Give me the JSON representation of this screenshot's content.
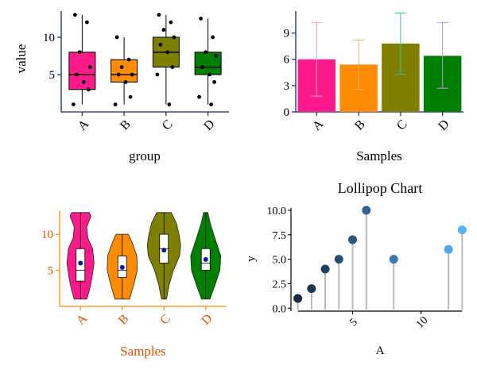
{
  "chart_data": [
    {
      "type": "box",
      "panel": "top-left",
      "xlabel": "group",
      "ylabel": "value",
      "categories": [
        "A",
        "B",
        "C",
        "D"
      ],
      "ylim": [
        0,
        13.5
      ],
      "yticks": [
        5,
        10
      ],
      "colors": [
        "#ff1a8c",
        "#ff8c00",
        "#808000",
        "#008000"
      ],
      "axis_color": "#1a237e",
      "boxes": [
        {
          "min": 1,
          "q1": 3,
          "median": 5,
          "q3": 8,
          "max": 13
        },
        {
          "min": 1,
          "q1": 4,
          "median": 5,
          "q3": 7,
          "max": 10
        },
        {
          "min": 1,
          "q1": 6,
          "median": 8,
          "q3": 10,
          "max": 13
        },
        {
          "min": 1,
          "q1": 5,
          "median": 6,
          "q3": 8,
          "max": 12.5
        }
      ],
      "points": [
        [
          13,
          12,
          8,
          6,
          5,
          4,
          3,
          1
        ],
        [
          10,
          7,
          6,
          5,
          5,
          4,
          2,
          1
        ],
        [
          13,
          12,
          11,
          10,
          9,
          8,
          6,
          5,
          1
        ],
        [
          12.5,
          10,
          8,
          7.5,
          6,
          5,
          4,
          2,
          1
        ]
      ]
    },
    {
      "type": "bar",
      "panel": "top-right",
      "xlabel": "Samples",
      "ylabel": "",
      "categories": [
        "A",
        "B",
        "C",
        "D"
      ],
      "values": [
        6,
        5.4,
        7.8,
        6.4
      ],
      "error_low": [
        1.8,
        2.6,
        4.3,
        2.7
      ],
      "error_high": [
        10.2,
        8.2,
        11.3,
        10.2
      ],
      "ylim": [
        0,
        11.5
      ],
      "yticks": [
        0,
        3,
        6,
        9
      ],
      "colors": [
        "#ff1a8c",
        "#ff8c00",
        "#808000",
        "#008000"
      ],
      "error_colors": [
        "#f4a0c0",
        "#e8b070",
        "#30c0b0",
        "#c090e0"
      ],
      "axis_color": "#1a237e"
    },
    {
      "type": "violin",
      "panel": "bottom-left",
      "xlabel": "Samples",
      "ylabel": "",
      "categories": [
        "A",
        "B",
        "C",
        "D"
      ],
      "ylim": [
        0,
        13.2
      ],
      "yticks": [
        5,
        10
      ],
      "colors": [
        "#ff1a8c",
        "#ff8c00",
        "#808000",
        "#008000"
      ],
      "axis_color": "#ff8c00",
      "label_color": "#e65100",
      "min": [
        1,
        1,
        1,
        1
      ],
      "max": [
        13,
        10,
        13,
        13
      ],
      "q1": [
        3.5,
        4,
        6,
        5
      ],
      "median": [
        5,
        5,
        8,
        6
      ],
      "q3": [
        8,
        7,
        10,
        8
      ],
      "mean": [
        6,
        5.4,
        7.8,
        6.5
      ],
      "width_profile": [
        [
          [
            1,
            0.3
          ],
          [
            2.5,
            0.45
          ],
          [
            4,
            0.55
          ],
          [
            6,
            0.65
          ],
          [
            8,
            0.58
          ],
          [
            9.5,
            0.35
          ],
          [
            11,
            0.3
          ],
          [
            12.5,
            0.5
          ],
          [
            13,
            0.42
          ]
        ],
        [
          [
            1,
            0.35
          ],
          [
            3,
            0.55
          ],
          [
            5,
            0.72
          ],
          [
            7,
            0.7
          ],
          [
            9,
            0.45
          ],
          [
            10,
            0.3
          ]
        ],
        [
          [
            1,
            0.12
          ],
          [
            3,
            0.25
          ],
          [
            5,
            0.45
          ],
          [
            7,
            0.75
          ],
          [
            8.5,
            0.8
          ],
          [
            10,
            0.72
          ],
          [
            11.5,
            0.6
          ],
          [
            13,
            0.35
          ]
        ],
        [
          [
            1,
            0.2
          ],
          [
            3,
            0.45
          ],
          [
            5,
            0.68
          ],
          [
            7,
            0.72
          ],
          [
            8.5,
            0.55
          ],
          [
            10,
            0.38
          ],
          [
            11.5,
            0.22
          ],
          [
            13,
            0.1
          ]
        ]
      ]
    },
    {
      "type": "lollipop",
      "panel": "bottom-right",
      "title": "Lollipop Chart",
      "xlabel": "A",
      "ylabel": "y",
      "x": [
        1,
        2,
        3,
        4,
        5,
        6,
        8,
        12,
        13
      ],
      "y": [
        1,
        2,
        4,
        5,
        7,
        10,
        5,
        6,
        8
      ],
      "xlim": [
        0.5,
        13.5
      ],
      "ylim": [
        -0.3,
        10.4
      ],
      "xticks": [
        5,
        10
      ],
      "yticks": [
        0.0,
        2.5,
        5.0,
        7.5,
        10.0
      ],
      "ytick_labels": [
        "0.0",
        "2.5",
        "5.0",
        "7.5",
        "10.0"
      ],
      "color_low": "#132b43",
      "color_high": "#56b1f7",
      "stem_color": "#b3b3b3"
    }
  ]
}
